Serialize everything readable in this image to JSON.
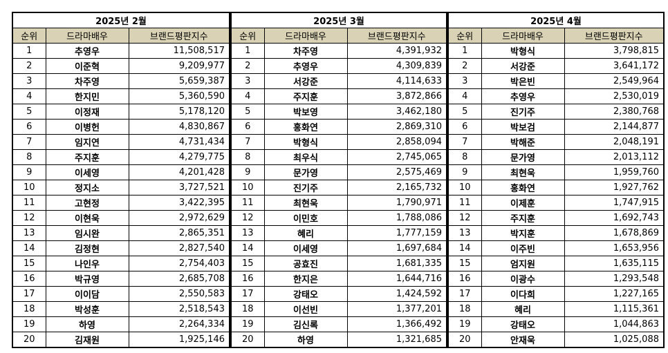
{
  "columns": {
    "rank": "순위",
    "name": "드라마배우",
    "score": "브랜드평판지수"
  },
  "months": [
    {
      "title": "2025년 2월",
      "rows": [
        {
          "rank": "1",
          "name": "추영우",
          "score": "11,508,517"
        },
        {
          "rank": "2",
          "name": "이준혁",
          "score": "9,209,977"
        },
        {
          "rank": "3",
          "name": "차주영",
          "score": "5,659,387"
        },
        {
          "rank": "4",
          "name": "한지민",
          "score": "5,360,590"
        },
        {
          "rank": "5",
          "name": "이정재",
          "score": "5,178,120"
        },
        {
          "rank": "6",
          "name": "이병헌",
          "score": "4,830,867"
        },
        {
          "rank": "7",
          "name": "임지연",
          "score": "4,731,434"
        },
        {
          "rank": "8",
          "name": "주지훈",
          "score": "4,279,775"
        },
        {
          "rank": "9",
          "name": "이세영",
          "score": "4,201,428"
        },
        {
          "rank": "10",
          "name": "정지소",
          "score": "3,727,521"
        },
        {
          "rank": "11",
          "name": "고현정",
          "score": "3,422,395"
        },
        {
          "rank": "12",
          "name": "이현욱",
          "score": "2,972,629"
        },
        {
          "rank": "13",
          "name": "임시완",
          "score": "2,865,351"
        },
        {
          "rank": "14",
          "name": "김정현",
          "score": "2,827,540"
        },
        {
          "rank": "15",
          "name": "나인우",
          "score": "2,754,403"
        },
        {
          "rank": "16",
          "name": "박규영",
          "score": "2,685,708"
        },
        {
          "rank": "17",
          "name": "이이담",
          "score": "2,550,583"
        },
        {
          "rank": "18",
          "name": "박성훈",
          "score": "2,518,543"
        },
        {
          "rank": "19",
          "name": "하영",
          "score": "2,264,334"
        },
        {
          "rank": "20",
          "name": "김재원",
          "score": "1,925,146"
        }
      ]
    },
    {
      "title": "2025년 3월",
      "rows": [
        {
          "rank": "1",
          "name": "차주영",
          "score": "4,391,932"
        },
        {
          "rank": "2",
          "name": "추영우",
          "score": "4,309,839"
        },
        {
          "rank": "3",
          "name": "서강준",
          "score": "4,114,633"
        },
        {
          "rank": "4",
          "name": "주지훈",
          "score": "3,872,866"
        },
        {
          "rank": "5",
          "name": "박보영",
          "score": "3,462,180"
        },
        {
          "rank": "6",
          "name": "홍화연",
          "score": "2,869,310"
        },
        {
          "rank": "7",
          "name": "박형식",
          "score": "2,858,094"
        },
        {
          "rank": "8",
          "name": "최우식",
          "score": "2,745,065"
        },
        {
          "rank": "9",
          "name": "문가영",
          "score": "2,575,469"
        },
        {
          "rank": "10",
          "name": "진기주",
          "score": "2,165,732"
        },
        {
          "rank": "11",
          "name": "최현욱",
          "score": "1,790,971"
        },
        {
          "rank": "12",
          "name": "이민호",
          "score": "1,788,086"
        },
        {
          "rank": "13",
          "name": "혜리",
          "score": "1,777,159"
        },
        {
          "rank": "14",
          "name": "이세영",
          "score": "1,697,684"
        },
        {
          "rank": "15",
          "name": "공효진",
          "score": "1,681,335"
        },
        {
          "rank": "16",
          "name": "한지은",
          "score": "1,644,716"
        },
        {
          "rank": "17",
          "name": "강태오",
          "score": "1,424,592"
        },
        {
          "rank": "18",
          "name": "이선빈",
          "score": "1,377,201"
        },
        {
          "rank": "19",
          "name": "김신록",
          "score": "1,366,492"
        },
        {
          "rank": "20",
          "name": "하영",
          "score": "1,321,685"
        }
      ]
    },
    {
      "title": "2025년 4월",
      "rows": [
        {
          "rank": "1",
          "name": "박형식",
          "score": "3,798,815"
        },
        {
          "rank": "2",
          "name": "서강준",
          "score": "3,641,172"
        },
        {
          "rank": "3",
          "name": "박은빈",
          "score": "2,549,964"
        },
        {
          "rank": "4",
          "name": "추영우",
          "score": "2,530,019"
        },
        {
          "rank": "5",
          "name": "진기주",
          "score": "2,380,768"
        },
        {
          "rank": "6",
          "name": "박보검",
          "score": "2,144,877"
        },
        {
          "rank": "7",
          "name": "박해준",
          "score": "2,048,191"
        },
        {
          "rank": "8",
          "name": "문가영",
          "score": "2,013,112"
        },
        {
          "rank": "9",
          "name": "최현욱",
          "score": "1,959,760"
        },
        {
          "rank": "10",
          "name": "홍화연",
          "score": "1,927,762"
        },
        {
          "rank": "11",
          "name": "이제훈",
          "score": "1,747,915"
        },
        {
          "rank": "12",
          "name": "주지훈",
          "score": "1,692,743"
        },
        {
          "rank": "13",
          "name": "박지훈",
          "score": "1,678,869"
        },
        {
          "rank": "14",
          "name": "이주빈",
          "score": "1,653,956"
        },
        {
          "rank": "15",
          "name": "엄지원",
          "score": "1,635,115"
        },
        {
          "rank": "16",
          "name": "이광수",
          "score": "1,293,548"
        },
        {
          "rank": "17",
          "name": "이다희",
          "score": "1,227,165"
        },
        {
          "rank": "18",
          "name": "혜리",
          "score": "1,115,361"
        },
        {
          "rank": "19",
          "name": "강태오",
          "score": "1,044,863"
        },
        {
          "rank": "20",
          "name": "안재욱",
          "score": "1,025,088"
        }
      ]
    }
  ]
}
